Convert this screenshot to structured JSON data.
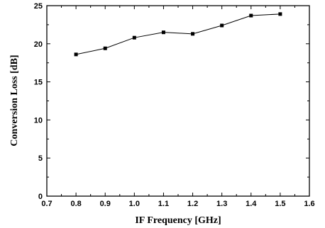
{
  "chart_data": {
    "type": "line",
    "title": "",
    "xlabel": "IF Frequency [GHz]",
    "ylabel": "Conversion Loss [dB]",
    "xlim": [
      0.7,
      1.6
    ],
    "ylim": [
      0,
      25
    ],
    "x_ticks": [
      0.7,
      0.8,
      0.9,
      1.0,
      1.1,
      1.2,
      1.3,
      1.4,
      1.5,
      1.6
    ],
    "x_tick_labels": [
      "0.7",
      "0.8",
      "0.9",
      "1.0",
      "1.1",
      "1.2",
      "1.3",
      "1.4",
      "1.5",
      "1.6"
    ],
    "y_ticks": [
      0,
      5,
      10,
      15,
      20,
      25
    ],
    "y_tick_labels": [
      "0",
      "5",
      "10",
      "15",
      "20",
      "25"
    ],
    "grid": false,
    "marker": "square",
    "line_color": "#000000",
    "series": [
      {
        "x": [
          0.8,
          0.9,
          1.0,
          1.1,
          1.2,
          1.3,
          1.4,
          1.5
        ],
        "y": [
          18.6,
          19.4,
          20.8,
          21.5,
          21.3,
          22.4,
          23.7,
          23.9
        ]
      }
    ]
  }
}
